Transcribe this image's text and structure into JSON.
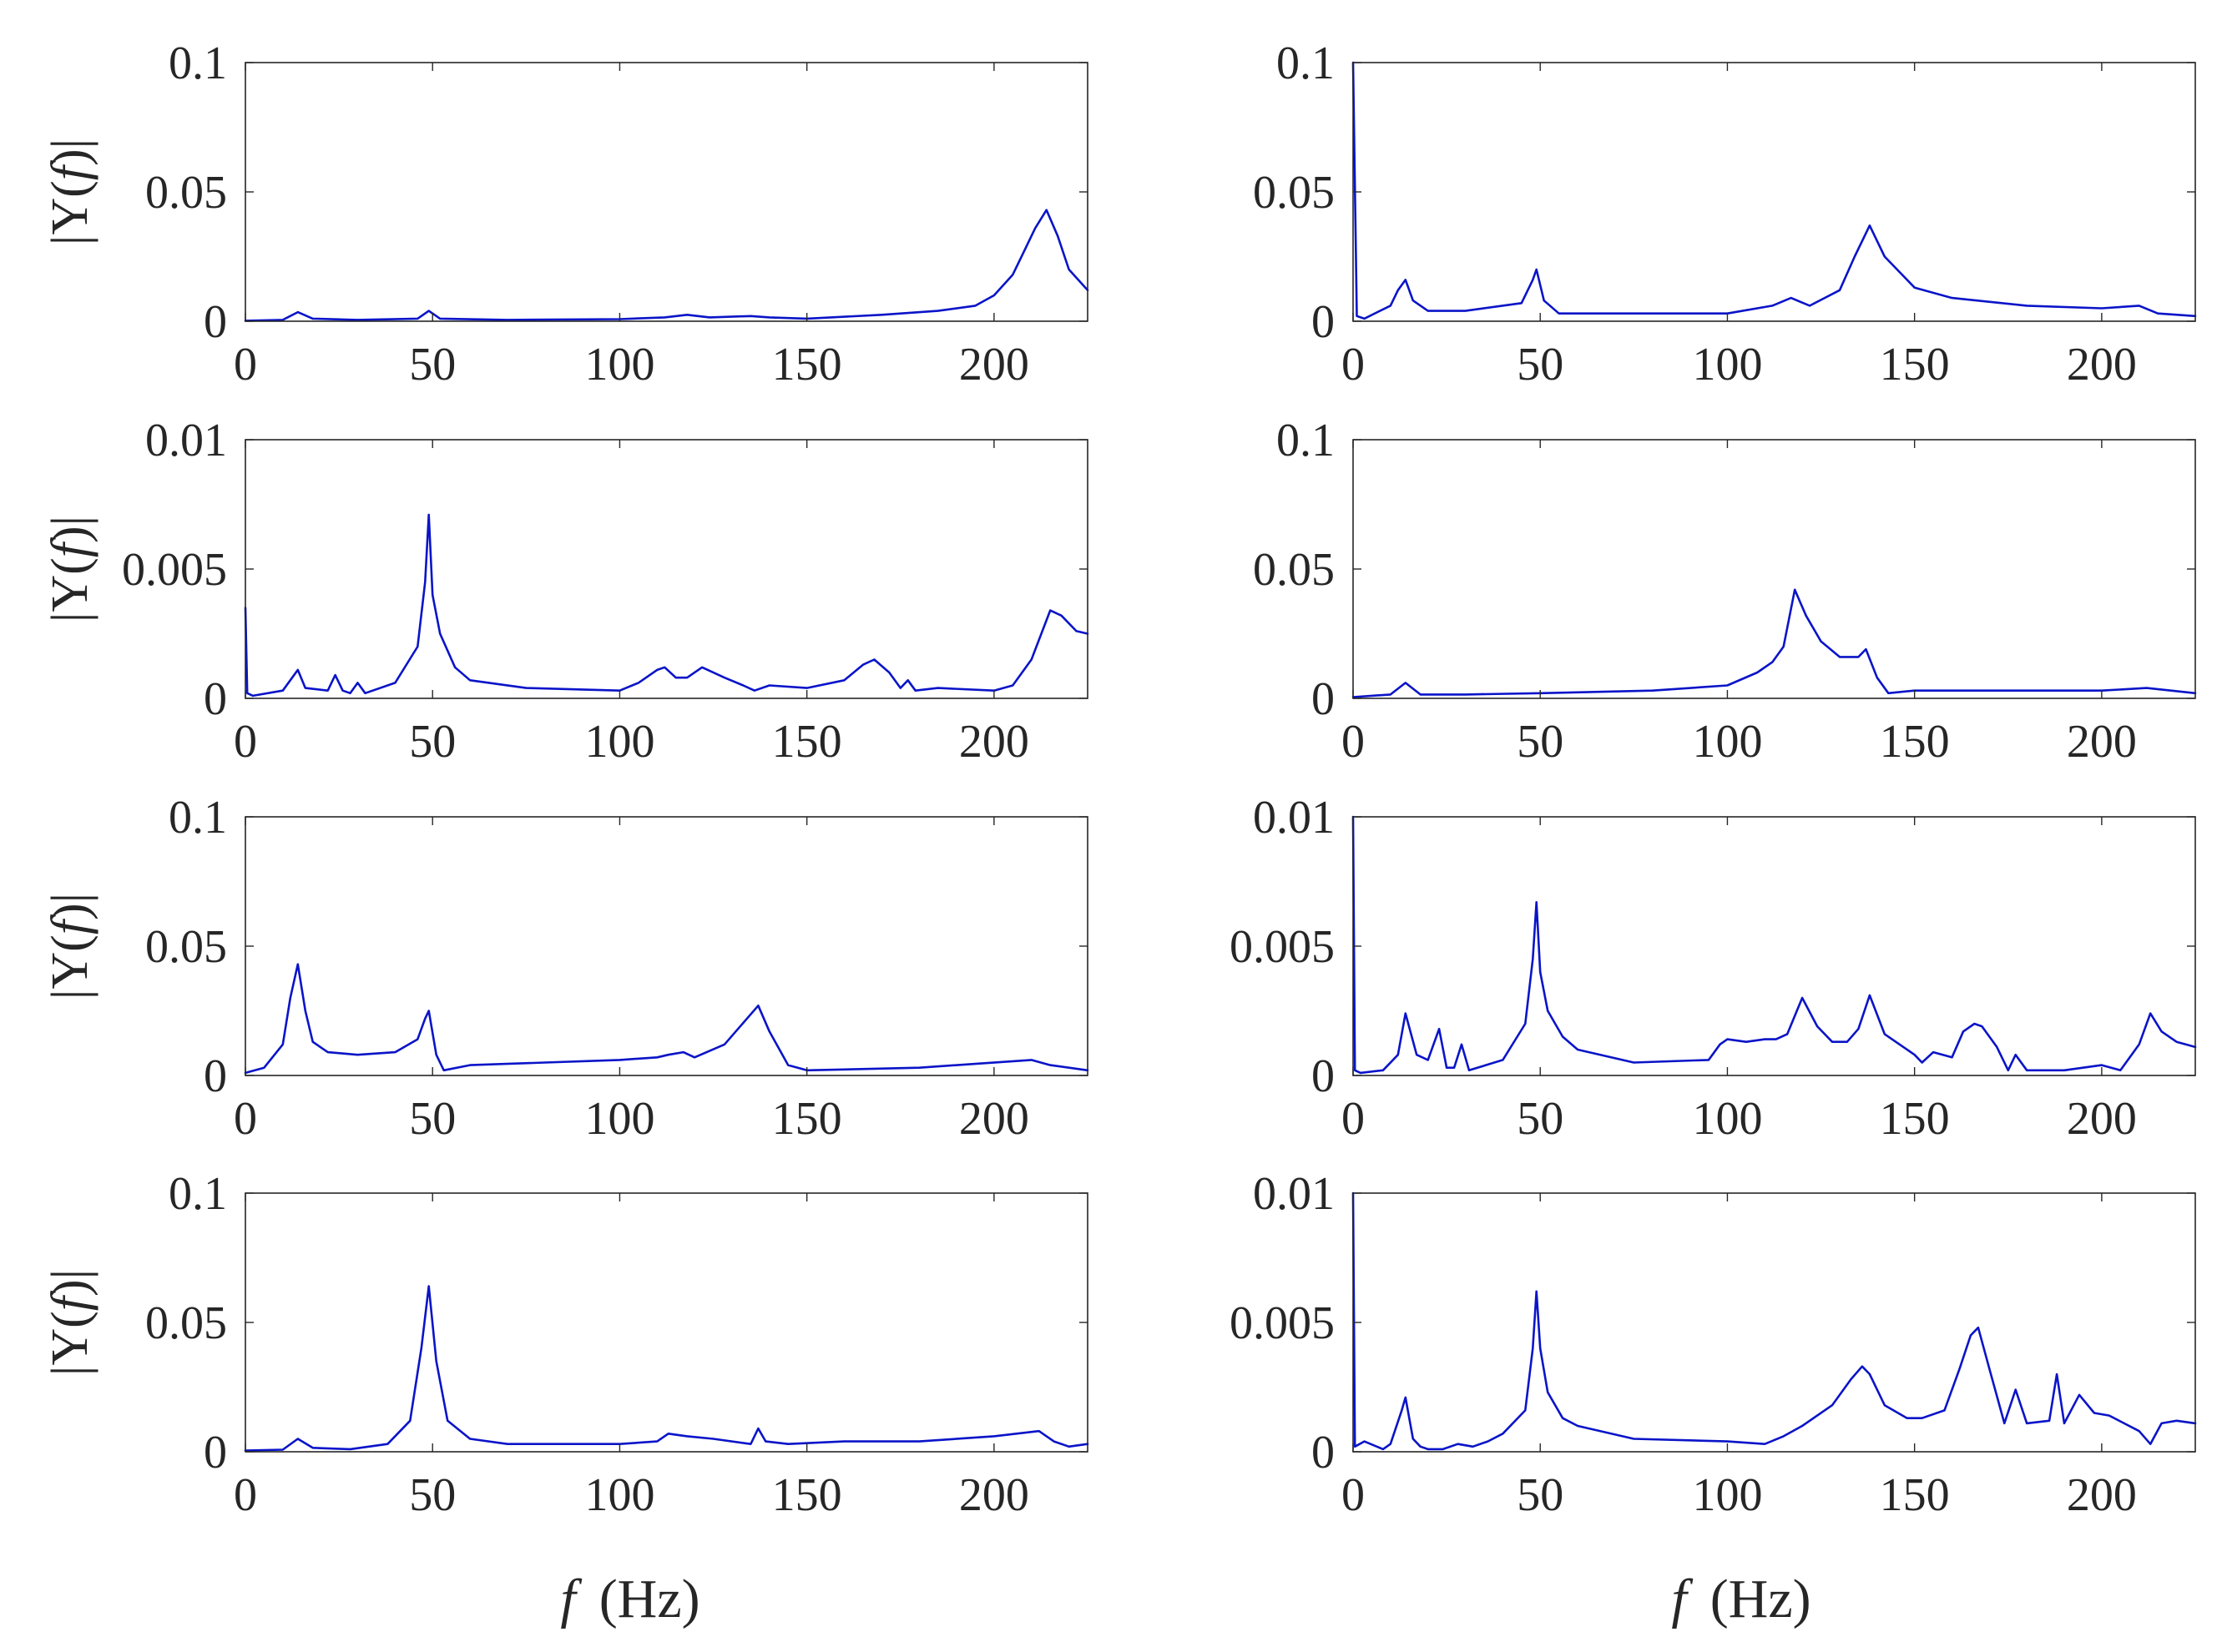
{
  "figure": {
    "x_axis_label": "(Hz)",
    "x_axis_symbol": "f",
    "y_axis_label_prefix": "|Y(",
    "y_axis_label_symbol": "f",
    "y_axis_label_suffix": ")|",
    "line_color": "#0a14c8",
    "axis_color": "#262626"
  },
  "chart_data": [
    {
      "id": "left-1",
      "type": "line",
      "column": "left",
      "row": 1,
      "xlim": [
        0,
        225
      ],
      "ylim": [
        0,
        0.1
      ],
      "xticks": [
        0,
        50,
        100,
        150,
        200
      ],
      "xtick_labels": [
        "0",
        "50",
        "100",
        "150",
        "200"
      ],
      "yticks": [
        0,
        0.05,
        0.1
      ],
      "ytick_labels": [
        "0",
        "0.05",
        "0.1"
      ],
      "ylabel": "|Y(f)|",
      "x": [
        0,
        10,
        14,
        18,
        30,
        46,
        49,
        52,
        70,
        100,
        112,
        118,
        124,
        135,
        140,
        150,
        170,
        185,
        195,
        200,
        205,
        208,
        211,
        214,
        217,
        220,
        225
      ],
      "y": [
        0.0002,
        0.0005,
        0.0035,
        0.001,
        0.0005,
        0.001,
        0.004,
        0.001,
        0.0005,
        0.0008,
        0.0015,
        0.0025,
        0.0015,
        0.002,
        0.0015,
        0.001,
        0.0025,
        0.004,
        0.006,
        0.01,
        0.018,
        0.027,
        0.036,
        0.043,
        0.033,
        0.02,
        0.012
      ]
    },
    {
      "id": "right-1",
      "type": "line",
      "column": "right",
      "row": 1,
      "xlim": [
        0,
        225
      ],
      "ylim": [
        0,
        0.1
      ],
      "xticks": [
        0,
        50,
        100,
        150,
        200
      ],
      "xtick_labels": [
        "0",
        "50",
        "100",
        "150",
        "200"
      ],
      "yticks": [
        0,
        0.05,
        0.1
      ],
      "ytick_labels": [
        "0",
        "0.05",
        "0.1"
      ],
      "ylabel": "",
      "x": [
        0,
        1,
        3,
        10,
        12,
        14,
        16,
        20,
        30,
        45,
        48,
        49,
        51,
        55,
        80,
        100,
        112,
        117,
        122,
        130,
        134,
        138,
        142,
        150,
        160,
        180,
        200,
        210,
        215,
        225
      ],
      "y": [
        0.1,
        0.002,
        0.001,
        0.006,
        0.012,
        0.016,
        0.008,
        0.004,
        0.004,
        0.007,
        0.016,
        0.02,
        0.008,
        0.003,
        0.003,
        0.003,
        0.006,
        0.009,
        0.006,
        0.012,
        0.025,
        0.037,
        0.025,
        0.013,
        0.009,
        0.006,
        0.005,
        0.006,
        0.003,
        0.002
      ]
    },
    {
      "id": "left-2",
      "type": "line",
      "column": "left",
      "row": 2,
      "xlim": [
        0,
        225
      ],
      "ylim": [
        0,
        0.01
      ],
      "xticks": [
        0,
        50,
        100,
        150,
        200
      ],
      "xtick_labels": [
        "0",
        "50",
        "100",
        "150",
        "200"
      ],
      "yticks": [
        0,
        0.005,
        0.01
      ],
      "ytick_labels": [
        "0",
        "0.005",
        "0.01"
      ],
      "ylabel": "|Y(f)|",
      "x": [
        0,
        0.5,
        2,
        10,
        14,
        16,
        22,
        24,
        26,
        28,
        30,
        32,
        40,
        46,
        48,
        49,
        50,
        52,
        56,
        60,
        75,
        100,
        105,
        110,
        112,
        115,
        118,
        122,
        128,
        133,
        136,
        140,
        150,
        160,
        165,
        168,
        172,
        175,
        177,
        179,
        185,
        200,
        205,
        210,
        215,
        218,
        222,
        225
      ],
      "y": [
        0.0035,
        0.0002,
        0.0001,
        0.0003,
        0.0011,
        0.0004,
        0.0003,
        0.0009,
        0.0003,
        0.0002,
        0.0006,
        0.0002,
        0.0006,
        0.002,
        0.0045,
        0.0071,
        0.004,
        0.0025,
        0.0012,
        0.0007,
        0.0004,
        0.0003,
        0.0006,
        0.0011,
        0.0012,
        0.0008,
        0.0008,
        0.0012,
        0.0008,
        0.0005,
        0.0003,
        0.0005,
        0.0004,
        0.0007,
        0.0013,
        0.0015,
        0.001,
        0.0004,
        0.0007,
        0.0003,
        0.0004,
        0.0003,
        0.0005,
        0.0015,
        0.0034,
        0.0032,
        0.0026,
        0.0025
      ]
    },
    {
      "id": "right-2",
      "type": "line",
      "column": "right",
      "row": 2,
      "xlim": [
        0,
        225
      ],
      "ylim": [
        0,
        0.1
      ],
      "xticks": [
        0,
        50,
        100,
        150,
        200
      ],
      "xtick_labels": [
        "0",
        "50",
        "100",
        "150",
        "200"
      ],
      "yticks": [
        0,
        0.05,
        0.1
      ],
      "ytick_labels": [
        "0",
        "0.05",
        "0.1"
      ],
      "ylabel": "",
      "x": [
        0,
        10,
        14,
        18,
        30,
        50,
        80,
        100,
        108,
        112,
        115,
        118,
        121,
        125,
        130,
        135,
        137,
        140,
        143,
        150,
        200,
        212,
        225
      ],
      "y": [
        0.0005,
        0.0015,
        0.006,
        0.0015,
        0.0015,
        0.002,
        0.003,
        0.005,
        0.01,
        0.014,
        0.02,
        0.042,
        0.032,
        0.022,
        0.016,
        0.016,
        0.019,
        0.008,
        0.002,
        0.003,
        0.003,
        0.004,
        0.002
      ]
    },
    {
      "id": "left-3",
      "type": "line",
      "column": "left",
      "row": 3,
      "xlim": [
        0,
        225
      ],
      "ylim": [
        0,
        0.1
      ],
      "xticks": [
        0,
        50,
        100,
        150,
        200
      ],
      "xtick_labels": [
        "0",
        "50",
        "100",
        "150",
        "200"
      ],
      "yticks": [
        0,
        0.05,
        0.1
      ],
      "ytick_labels": [
        "0",
        "0.05",
        "0.1"
      ],
      "ylabel": "|Y(f)|",
      "x": [
        0,
        5,
        10,
        12,
        14,
        16,
        18,
        22,
        30,
        40,
        46,
        48,
        49,
        51,
        53,
        60,
        80,
        100,
        110,
        113,
        117,
        120,
        128,
        134,
        137,
        140,
        145,
        150,
        180,
        210,
        215,
        225
      ],
      "y": [
        0.001,
        0.003,
        0.012,
        0.03,
        0.043,
        0.025,
        0.013,
        0.009,
        0.008,
        0.009,
        0.014,
        0.022,
        0.025,
        0.008,
        0.002,
        0.004,
        0.005,
        0.006,
        0.007,
        0.008,
        0.009,
        0.007,
        0.012,
        0.022,
        0.027,
        0.017,
        0.004,
        0.002,
        0.003,
        0.006,
        0.004,
        0.002
      ]
    },
    {
      "id": "right-3",
      "type": "line",
      "column": "right",
      "row": 3,
      "xlim": [
        0,
        225
      ],
      "ylim": [
        0,
        0.01
      ],
      "xticks": [
        0,
        50,
        100,
        150,
        200
      ],
      "xtick_labels": [
        "0",
        "50",
        "100",
        "150",
        "200"
      ],
      "yticks": [
        0,
        0.005,
        0.01
      ],
      "ytick_labels": [
        "0",
        "0.005",
        "0.01"
      ],
      "ylabel": "",
      "x": [
        0,
        0.5,
        2,
        8,
        12,
        14,
        17,
        20,
        23,
        25,
        27,
        29,
        31,
        40,
        46,
        48,
        49,
        50,
        52,
        56,
        60,
        75,
        95,
        98,
        100,
        105,
        110,
        113,
        116,
        120,
        124,
        128,
        132,
        135,
        138,
        142,
        150,
        152,
        155,
        160,
        163,
        166,
        168,
        172,
        175,
        177,
        180,
        190,
        200,
        205,
        210,
        213,
        216,
        220,
        225
      ],
      "y": [
        0.01,
        0.0002,
        0.0001,
        0.0002,
        0.0008,
        0.0024,
        0.0008,
        0.0006,
        0.0018,
        0.0003,
        0.0003,
        0.0012,
        0.0002,
        0.0006,
        0.002,
        0.0045,
        0.0067,
        0.004,
        0.0025,
        0.0015,
        0.001,
        0.0005,
        0.0006,
        0.0012,
        0.0014,
        0.0013,
        0.0014,
        0.0014,
        0.0016,
        0.003,
        0.0019,
        0.0013,
        0.0013,
        0.0018,
        0.0031,
        0.0016,
        0.0008,
        0.0005,
        0.0009,
        0.0007,
        0.0017,
        0.002,
        0.0019,
        0.0011,
        0.0002,
        0.0008,
        0.0002,
        0.0002,
        0.0004,
        0.0002,
        0.0012,
        0.0024,
        0.0017,
        0.0013,
        0.0011
      ]
    },
    {
      "id": "left-4",
      "type": "line",
      "column": "left",
      "row": 4,
      "xlim": [
        0,
        225
      ],
      "ylim": [
        0,
        0.1
      ],
      "xticks": [
        0,
        50,
        100,
        150,
        200
      ],
      "xtick_labels": [
        "0",
        "50",
        "100",
        "150",
        "200"
      ],
      "yticks": [
        0,
        0.05,
        0.1
      ],
      "ytick_labels": [
        "0",
        "0.05",
        "0.1"
      ],
      "ylabel": "|Y(f)|",
      "x": [
        0,
        10,
        14,
        18,
        28,
        38,
        44,
        47,
        49,
        51,
        54,
        60,
        70,
        100,
        110,
        113,
        118,
        125,
        135,
        137,
        139,
        145,
        160,
        180,
        200,
        212,
        216,
        220,
        225
      ],
      "y": [
        0.0005,
        0.0008,
        0.005,
        0.0015,
        0.001,
        0.003,
        0.012,
        0.04,
        0.064,
        0.035,
        0.012,
        0.005,
        0.003,
        0.003,
        0.004,
        0.007,
        0.006,
        0.005,
        0.003,
        0.009,
        0.004,
        0.003,
        0.004,
        0.004,
        0.006,
        0.008,
        0.004,
        0.002,
        0.003
      ]
    },
    {
      "id": "right-4",
      "type": "line",
      "column": "right",
      "row": 4,
      "xlim": [
        0,
        225
      ],
      "ylim": [
        0,
        0.01
      ],
      "xticks": [
        0,
        50,
        100,
        150,
        200
      ],
      "xtick_labels": [
        "0",
        "50",
        "100",
        "150",
        "200"
      ],
      "yticks": [
        0,
        0.005,
        0.01
      ],
      "ytick_labels": [
        "0",
        "0.005",
        "0.01"
      ],
      "ylabel": "",
      "x": [
        0,
        0.5,
        3,
        8,
        10,
        13,
        14,
        16,
        18,
        20,
        24,
        28,
        32,
        36,
        40,
        46,
        48,
        49,
        50,
        52,
        56,
        60,
        75,
        100,
        110,
        115,
        120,
        128,
        133,
        136,
        138,
        142,
        148,
        152,
        158,
        162,
        165,
        167,
        170,
        174,
        177,
        180,
        186,
        188,
        190,
        194,
        198,
        202,
        210,
        213,
        216,
        220,
        225
      ],
      "y": [
        0.01,
        0.0002,
        0.0004,
        0.0001,
        0.0003,
        0.0016,
        0.0021,
        0.0005,
        0.0002,
        0.0001,
        0.0001,
        0.0003,
        0.0002,
        0.0004,
        0.0007,
        0.0016,
        0.004,
        0.0062,
        0.004,
        0.0023,
        0.0013,
        0.001,
        0.0005,
        0.0004,
        0.0003,
        0.0006,
        0.001,
        0.0018,
        0.0028,
        0.0033,
        0.003,
        0.0018,
        0.0013,
        0.0013,
        0.0016,
        0.0032,
        0.0045,
        0.0048,
        0.0032,
        0.0011,
        0.0024,
        0.0011,
        0.0012,
        0.003,
        0.0011,
        0.0022,
        0.0015,
        0.0014,
        0.0008,
        0.0003,
        0.0011,
        0.0012,
        0.0011
      ]
    }
  ]
}
